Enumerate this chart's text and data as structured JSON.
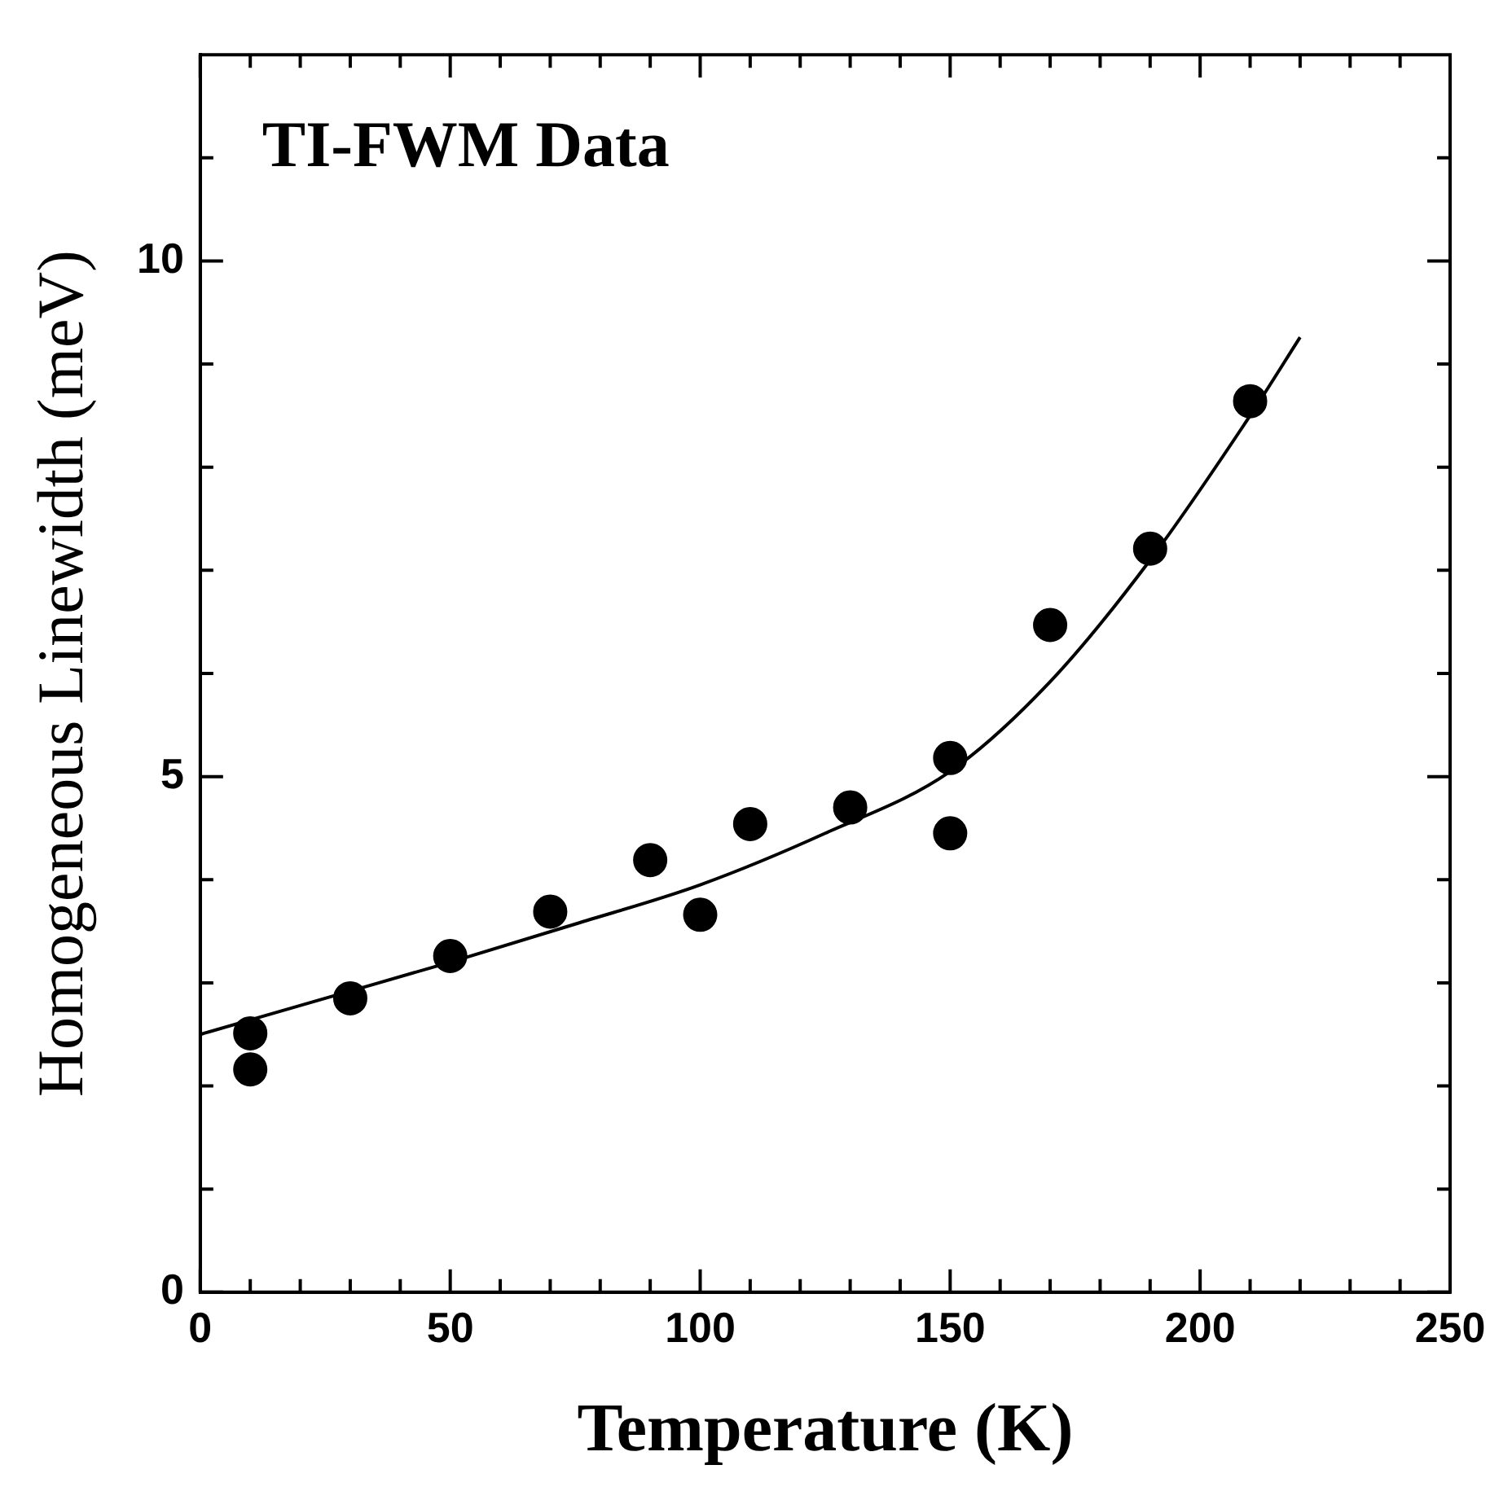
{
  "chart_data": {
    "type": "scatter",
    "title": "TI-FWM Data",
    "xlabel": "Temperature (K)",
    "ylabel": "Homogeneous Linewidth (meV)",
    "xlim": [
      0,
      250
    ],
    "ylim": [
      0,
      12
    ],
    "xticks": [
      0,
      {
        "value": 10,
        "label": null
      },
      {
        "value": 20,
        "label": null
      },
      {
        "value": 30,
        "label": null
      },
      {
        "value": 40,
        "label": null
      },
      50,
      {
        "value": 60,
        "label": null
      },
      {
        "value": 70,
        "label": null
      },
      {
        "value": 80,
        "label": null
      },
      {
        "value": 90,
        "label": null
      },
      100,
      {
        "value": 110,
        "label": null
      },
      {
        "value": 120,
        "label": null
      },
      {
        "value": 130,
        "label": null
      },
      {
        "value": 140,
        "label": null
      },
      150,
      {
        "value": 160,
        "label": null
      },
      {
        "value": 170,
        "label": null
      },
      {
        "value": 180,
        "label": null
      },
      {
        "value": 190,
        "label": null
      },
      200,
      {
        "value": 210,
        "label": null
      },
      {
        "value": 220,
        "label": null
      },
      {
        "value": 230,
        "label": null
      },
      {
        "value": 240,
        "label": null
      },
      250
    ],
    "yticks": [
      0,
      {
        "value": 1,
        "label": null
      },
      {
        "value": 2,
        "label": null
      },
      {
        "value": 3,
        "label": null
      },
      {
        "value": 4,
        "label": null
      },
      5,
      {
        "value": 6,
        "label": null
      },
      {
        "value": 7,
        "label": null
      },
      {
        "value": 8,
        "label": null
      },
      {
        "value": 9,
        "label": null
      },
      10,
      {
        "value": 11,
        "label": null
      }
    ],
    "grid": false,
    "legend": false,
    "marker": "circle",
    "x": [
      10,
      10,
      30,
      50,
      70,
      90,
      100,
      110,
      130,
      150,
      150,
      170,
      190,
      210
    ],
    "series": [
      {
        "type": "scatter",
        "color": "#000000",
        "values": [
          2.51,
          2.16,
          2.85,
          3.26,
          3.69,
          4.19,
          3.66,
          4.54,
          4.7,
          5.18,
          4.45,
          6.47,
          7.21,
          8.64
        ]
      },
      {
        "type": "line",
        "color": "#000000",
        "marker": "none",
        "line_style": "solid",
        "x": [
          0,
          25,
          50,
          75,
          100,
          125,
          150,
          170,
          190,
          210,
          220
        ],
        "values": [
          2.5,
          2.85,
          3.2,
          3.57,
          3.95,
          4.45,
          5.05,
          5.92,
          7.1,
          8.5,
          9.26
        ]
      }
    ]
  }
}
